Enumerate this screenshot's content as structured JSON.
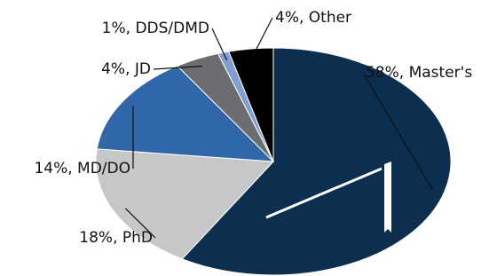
{
  "chart_data": {
    "type": "pie",
    "values": [
      58,
      18,
      14,
      4,
      1,
      4
    ],
    "value_labels": [
      "58%, Master's",
      "18%, PhD",
      "14%, MD/DO",
      "4%, JD",
      "1%, DDS/DMD",
      "4%, Other"
    ],
    "colors": [
      "#0d2f4f",
      "#c6c7c9",
      "#2f67a8",
      "#6b6d70",
      "#7f9fd3",
      "#000000"
    ]
  }
}
